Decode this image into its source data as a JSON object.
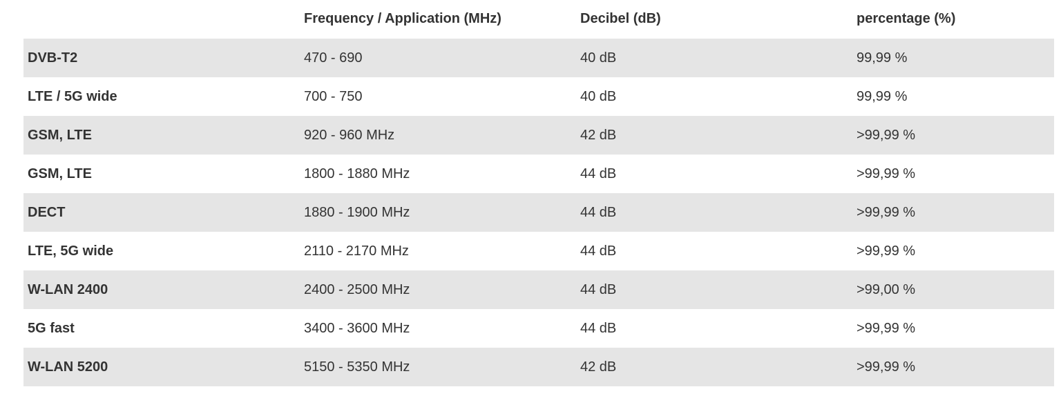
{
  "table": {
    "headers": [
      "",
      "Frequency / Application (MHz)",
      "Decibel (dB)",
      "percentage (%)"
    ],
    "rows": [
      [
        "DVB-T2",
        "470 - 690",
        "40 dB",
        "99,99 %"
      ],
      [
        "LTE / 5G wide",
        "700 - 750",
        "40 dB",
        "99,99 %"
      ],
      [
        "GSM, LTE",
        "920 - 960 MHz",
        "42 dB",
        ">99,99 %"
      ],
      [
        "GSM, LTE",
        "1800 - 1880 MHz",
        "44 dB",
        ">99,99 %"
      ],
      [
        "DECT",
        "1880 - 1900 MHz",
        "44 dB",
        ">99,99 %"
      ],
      [
        "LTE, 5G wide",
        "2110 - 2170 MHz",
        "44 dB",
        ">99,99 %"
      ],
      [
        "W-LAN 2400",
        "2400 - 2500 MHz",
        "44 dB",
        ">99,00 %"
      ],
      [
        "5G fast",
        "3400 - 3600 MHz",
        "44 dB",
        ">99,99 %"
      ],
      [
        "W-LAN 5200",
        "5150 - 5350 MHz",
        "42 dB",
        ">99,99 %"
      ]
    ]
  },
  "colors": {
    "stripe": "#e5e5e5",
    "text": "#333333",
    "background": "#ffffff"
  }
}
